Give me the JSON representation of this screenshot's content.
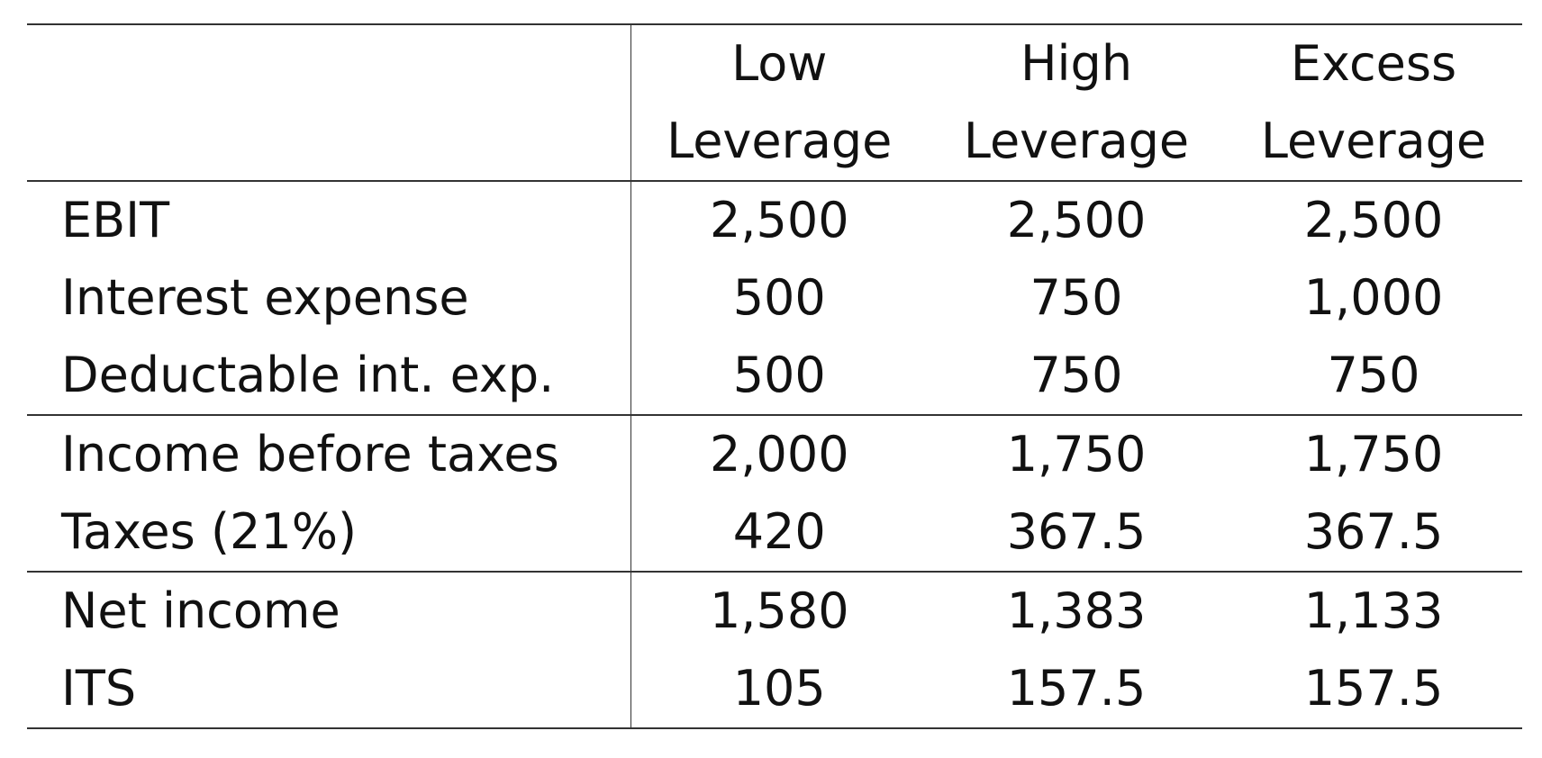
{
  "table": {
    "columns": [
      {
        "line1": "Low",
        "line2": "Leverage"
      },
      {
        "line1": "High",
        "line2": "Leverage"
      },
      {
        "line1": "Excess",
        "line2": "Leverage"
      }
    ],
    "groups": [
      {
        "rows": [
          {
            "label": "EBIT",
            "values": [
              "2,500",
              "2,500",
              "2,500"
            ]
          },
          {
            "label": "Interest expense",
            "values": [
              "500",
              "750",
              "1,000"
            ]
          },
          {
            "label": "Deductable int. exp.",
            "values": [
              "500",
              "750",
              "750"
            ]
          }
        ]
      },
      {
        "rows": [
          {
            "label": "Income before taxes",
            "values": [
              "2,000",
              "1,750",
              "1,750"
            ]
          },
          {
            "label": "Taxes (21%)",
            "values": [
              "420",
              "367.5",
              "367.5"
            ]
          }
        ]
      },
      {
        "rows": [
          {
            "label": "Net income",
            "values": [
              "1,580",
              "1,383",
              "1,133"
            ]
          },
          {
            "label": "ITS",
            "values": [
              "105",
              "157.5",
              "157.5"
            ]
          }
        ]
      }
    ]
  }
}
